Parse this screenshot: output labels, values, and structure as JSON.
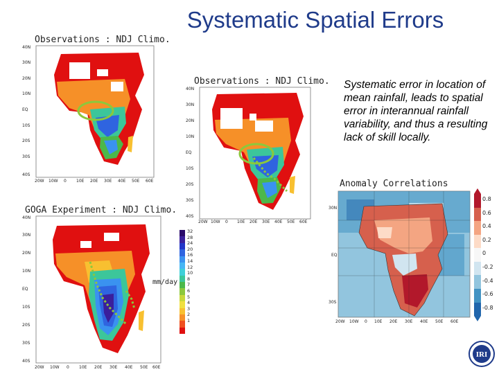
{
  "slide": {
    "title": "Systematic Spatial Errors",
    "note": "Systematic error in location of mean rainfall, leads to spatial error in interannual rainfall variability, and thus a resulting lack of skill locally.",
    "logo_text": "IRI"
  },
  "panels": {
    "obs1_title": "Observations : NDJ Climo.",
    "obs2_title": "Observations : NDJ Climo.",
    "goga_title": "GOGA Experiment : NDJ Climo.",
    "anom_title": "Anomaly Correlations"
  },
  "axes": {
    "lat_ticks": [
      "40N",
      "30N",
      "20N",
      "10N",
      "EQ",
      "10S",
      "20S",
      "30S",
      "40S"
    ],
    "lon_ticks": [
      "20W",
      "10W",
      "0",
      "10E",
      "20E",
      "30E",
      "40E",
      "50E",
      "60E"
    ],
    "anom_lat_ticks": [
      "30N",
      "EQ",
      "30S"
    ],
    "anom_lon_ticks": [
      "20W",
      "10W",
      "0",
      "10E",
      "20E",
      "30E",
      "40E",
      "50E",
      "60E"
    ]
  },
  "rain_colorbar": {
    "units": "mm/day",
    "labels": [
      "32",
      "28",
      "24",
      "20",
      "16",
      "14",
      "12",
      "10",
      "8",
      "7",
      "6",
      "5",
      "4",
      "3",
      "2",
      "1"
    ],
    "colors": [
      "#2a0a6b",
      "#3a1f9c",
      "#2336c8",
      "#2f64e0",
      "#3a92f0",
      "#46b6f5",
      "#3fcfd8",
      "#3cc69a",
      "#4cb84a",
      "#8cc83c",
      "#c8d83a",
      "#f0e040",
      "#f8c030",
      "#f69028",
      "#ef5020",
      "#e01010"
    ]
  },
  "corr_colorbar": {
    "labels": [
      "0.8",
      "0.6",
      "0.4",
      "0.2",
      "0",
      "-0.2",
      "-0.4",
      "-0.6",
      "-0.8"
    ],
    "colors": [
      "#b2182b",
      "#d6604d",
      "#f4a582",
      "#fddbc7",
      "#f7f7f7",
      "#d1e5f0",
      "#92c5de",
      "#4393c3",
      "#2166ac"
    ]
  }
}
